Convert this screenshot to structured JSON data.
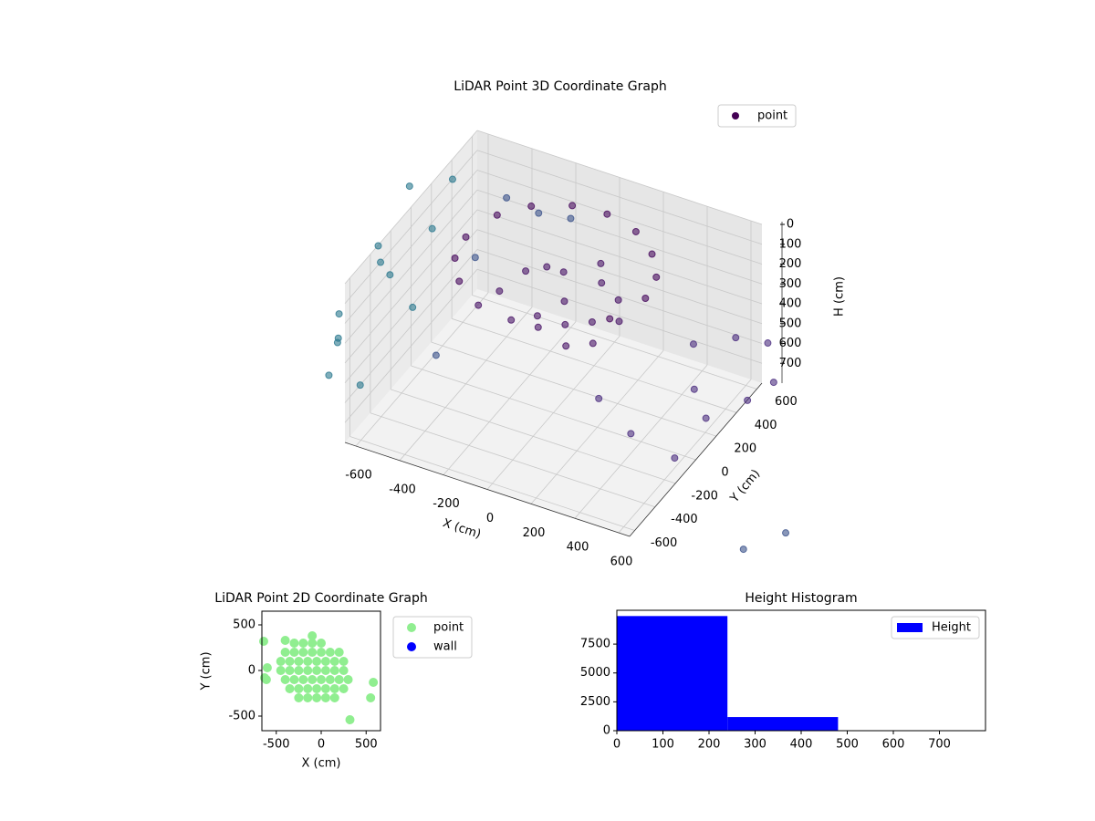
{
  "chart_data": [
    {
      "type": "scatter3d",
      "title": "LiDAR Point 3D Coordinate Graph",
      "x_label": "X (cm)",
      "y_label": "Y (cm)",
      "z_label": "H (cm)",
      "xlim": [
        -650,
        650
      ],
      "ylim": [
        -650,
        650
      ],
      "zlim": [
        800,
        0
      ],
      "xticks": [
        -600,
        -400,
        -200,
        0,
        200,
        400,
        600
      ],
      "yticks": [
        -600,
        -400,
        -200,
        0,
        200,
        400,
        600
      ],
      "zticks": [
        0,
        100,
        200,
        300,
        400,
        500,
        600,
        700
      ],
      "grid": true,
      "legend": "upper right",
      "series": [
        {
          "name": "point",
          "color": "#440154",
          "x": [
            -400,
            -350,
            -250,
            -100,
            50,
            200,
            320,
            400,
            420,
            -380,
            -300,
            350,
            -200,
            -100,
            0,
            100,
            200,
            250,
            150,
            0,
            -150,
            -250,
            50,
            -50,
            150,
            250,
            -100,
            100,
            300,
            500,
            600,
            700,
            550,
            650,
            400,
            300,
            600,
            700,
            750,
            -700,
            -750,
            -650,
            -800,
            -700,
            -600,
            -750,
            -650,
            -550,
            -800,
            -600,
            -700,
            -400,
            -300,
            -450,
            -350,
            -200,
            1100,
            1200
          ],
          "y": [
            0,
            200,
            320,
            400,
            420,
            380,
            280,
            150,
            0,
            -150,
            -280,
            -200,
            -100,
            -200,
            -150,
            -100,
            -50,
            100,
            150,
            100,
            50,
            -200,
            0,
            -50,
            -200,
            -150,
            150,
            250,
            0,
            300,
            500,
            600,
            200,
            100,
            -100,
            -200,
            -100,
            400,
            550,
            -600,
            -500,
            -300,
            -400,
            -100,
            100,
            200,
            -500,
            -200,
            0,
            300,
            -700,
            400,
            500,
            200,
            -400,
            600,
            -500,
            -300
          ],
          "z": [
            60,
            50,
            40,
            30,
            30,
            40,
            50,
            60,
            70,
            70,
            80,
            80,
            200,
            250,
            280,
            260,
            240,
            200,
            180,
            150,
            170,
            230,
            220,
            300,
            290,
            270,
            190,
            160,
            230,
            450,
            500,
            550,
            600,
            650,
            700,
            500,
            750,
            720,
            700,
            200,
            400,
            100,
            500,
            300,
            150,
            50,
            600,
            350,
            250,
            20,
            450,
            100,
            200,
            300,
            400,
            250,
            790,
            790
          ],
          "colors": [
            "#46085c",
            "#46085c",
            "#46085c",
            "#46085c",
            "#46085c",
            "#46085c",
            "#46085c",
            "#46085c",
            "#46085c",
            "#46085c",
            "#46085c",
            "#46085c",
            "#471365",
            "#471365",
            "#471365",
            "#471365",
            "#471365",
            "#471365",
            "#471365",
            "#471365",
            "#471365",
            "#471365",
            "#471365",
            "#471365",
            "#471365",
            "#471365",
            "#471365",
            "#471365",
            "#471365",
            "#4b2d7f",
            "#4b2d7f",
            "#4b2d7f",
            "#4b2d7f",
            "#4b2d7f",
            "#4b2d7f",
            "#4b2d7f",
            "#4b2d7f",
            "#4b2d7f",
            "#4b2d7f",
            "#2a788e",
            "#2a788e",
            "#2a788e",
            "#2a788e",
            "#2a788e",
            "#2a788e",
            "#2a788e",
            "#2a788e",
            "#2a788e",
            "#2a788e",
            "#2a788e",
            "#2a788e",
            "#3b528b",
            "#3b528b",
            "#3b528b",
            "#3b528b",
            "#3b528b",
            "#3b528b",
            "#3b528b"
          ]
        }
      ]
    },
    {
      "type": "scatter",
      "title": "LiDAR Point 2D Coordinate Graph",
      "x_label": "X (cm)",
      "y_label": "Y (cm)",
      "xlim": [
        -660,
        660
      ],
      "ylim": [
        -660,
        650
      ],
      "xticks": [
        -500,
        0,
        500
      ],
      "yticks": [
        -500,
        0,
        500
      ],
      "legend": "outside right",
      "series": [
        {
          "name": "point",
          "color": "#90ee90",
          "x": [
            -300,
            -200,
            -100,
            0,
            -400,
            -300,
            -200,
            -100,
            0,
            100,
            200,
            -450,
            -350,
            -250,
            -150,
            -50,
            50,
            150,
            250,
            -450,
            -350,
            -250,
            -150,
            -50,
            50,
            150,
            250,
            -400,
            -300,
            -200,
            -100,
            0,
            100,
            200,
            300,
            -350,
            -250,
            -150,
            -50,
            50,
            150,
            250,
            -250,
            -150,
            -50,
            50,
            150,
            -100,
            -400,
            -640,
            -630,
            -610,
            580,
            550,
            320,
            -600
          ],
          "y": [
            300,
            300,
            300,
            300,
            200,
            200,
            200,
            200,
            200,
            200,
            200,
            100,
            100,
            100,
            100,
            100,
            100,
            100,
            100,
            0,
            0,
            0,
            0,
            0,
            0,
            0,
            0,
            -100,
            -100,
            -100,
            -100,
            -100,
            -100,
            -100,
            -100,
            -200,
            -200,
            -200,
            -200,
            -200,
            -200,
            -200,
            -300,
            -300,
            -300,
            -300,
            -300,
            380,
            330,
            320,
            -80,
            -100,
            -130,
            -300,
            -540,
            30
          ]
        },
        {
          "name": "wall",
          "color": "#0000ff",
          "x": [],
          "y": []
        }
      ]
    },
    {
      "type": "hist",
      "title": "Height Histogram",
      "name": "Height",
      "color": "#0000ff",
      "bins": [
        0,
        240,
        480,
        720,
        960
      ],
      "counts": [
        9930,
        1180,
        0,
        30
      ],
      "xlim": [
        0,
        800
      ],
      "ylim": [
        0,
        10430
      ],
      "xticks": [
        0,
        100,
        200,
        300,
        400,
        500,
        600,
        700
      ],
      "yticks": [
        0,
        2500,
        5000,
        7500
      ],
      "legend": "upper right"
    }
  ]
}
